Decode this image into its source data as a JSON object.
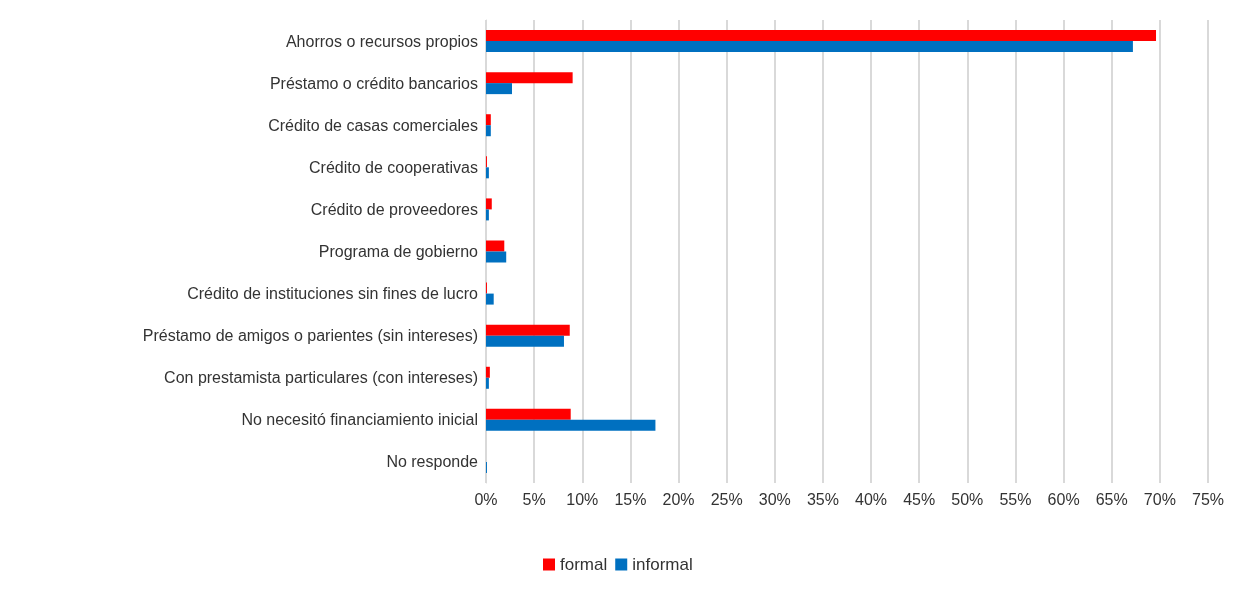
{
  "chart_data": {
    "type": "bar",
    "orientation": "horizontal",
    "categories": [
      "Ahorros o recursos propios",
      "Préstamo o crédito bancarios",
      "Crédito de casas comerciales",
      "Crédito de cooperativas",
      "Crédito de proveedores",
      "Programa de gobierno",
      "Crédito de instituciones sin fines de lucro",
      "Préstamo de amigos o parientes (sin intereses)",
      "Con prestamista particulares (con intereses)",
      "No necesitó financiamiento inicial",
      "No responde"
    ],
    "series": [
      {
        "name": "formal",
        "color": "#ff0000",
        "values": [
          69.6,
          9.0,
          0.5,
          0.1,
          0.6,
          1.9,
          0.1,
          8.7,
          0.4,
          8.8,
          0
        ]
      },
      {
        "name": "informal",
        "color": "#0070c0",
        "values": [
          67.2,
          2.7,
          0.5,
          0.3,
          0.3,
          2.1,
          0.8,
          8.1,
          0.3,
          17.6,
          0.1
        ]
      }
    ],
    "xlim": [
      0,
      75
    ],
    "xticks": [
      {
        "value": 0,
        "label": "0%"
      },
      {
        "value": 5,
        "label": "5%"
      },
      {
        "value": 10,
        "label": "10%"
      },
      {
        "value": 15,
        "label": "15%"
      },
      {
        "value": 20,
        "label": "20%"
      },
      {
        "value": 25,
        "label": "25%"
      },
      {
        "value": 30,
        "label": "30%"
      },
      {
        "value": 35,
        "label": "35%"
      },
      {
        "value": 40,
        "label": "40%"
      },
      {
        "value": 45,
        "label": "45%"
      },
      {
        "value": 50,
        "label": "50%"
      },
      {
        "value": 55,
        "label": "55%"
      },
      {
        "value": 60,
        "label": "60%"
      },
      {
        "value": 65,
        "label": "65%"
      },
      {
        "value": 70,
        "label": "70%"
      },
      {
        "value": 75,
        "label": "75%"
      }
    ],
    "grid": "x",
    "legend": "bottom"
  }
}
